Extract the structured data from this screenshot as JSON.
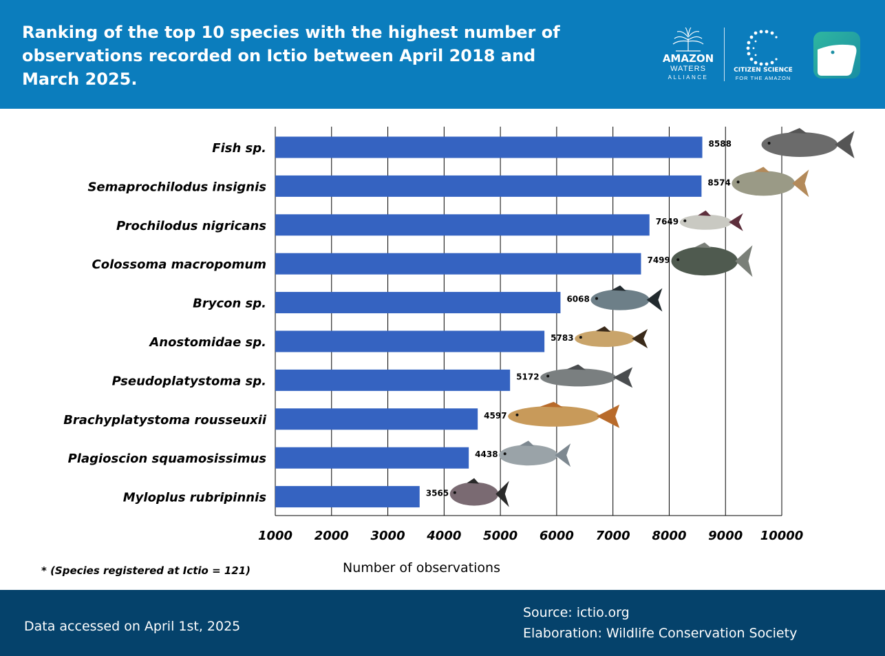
{
  "header": {
    "title": "Ranking of the top 10 species with the highest number of observations recorded on Ictio between April 2018 and March 2025.",
    "logos": {
      "amazon_waters": {
        "name": "AMAZON",
        "line2": "WATERS",
        "line3": "ALLIANCE"
      },
      "citizen_science": {
        "name": "CITIZEN SCIENCE",
        "sub": "FOR THE AMAZON"
      },
      "app_icon": "ictio-fish-app-icon"
    }
  },
  "colors": {
    "header_bg": "#0b7dbd",
    "footer_bg": "#05426b",
    "bar": "#3563c1",
    "grid": "#000000"
  },
  "chart_data": {
    "type": "bar",
    "orientation": "horizontal",
    "title": "Ranking of the top 10 species with the highest number of observations recorded on Ictio between April 2018 and March 2025.",
    "xlabel": "Number of observations",
    "ylabel": "",
    "xlim": [
      1000,
      10000
    ],
    "xticks": [
      1000,
      2000,
      3000,
      4000,
      5000,
      6000,
      7000,
      8000,
      9000,
      10000
    ],
    "grid": "vertical",
    "categories": [
      "Fish sp.",
      "Semaprochilodus insignis",
      "Prochilodus nigricans",
      "Colossoma macropomum",
      "Brycon sp.",
      "Anostomidae sp.",
      "Pseudoplatystoma sp.",
      "Brachyplatystoma rousseuxii",
      "Plagioscion squamosissimus",
      "Myloplus rubripinnis"
    ],
    "values": [
      8588,
      8574,
      7649,
      7499,
      6068,
      5783,
      5172,
      4597,
      4438,
      3565
    ],
    "note": "* (Species registered at Ictio = 121)"
  },
  "footer": {
    "accessed": "Data accessed on April 1st, 2025",
    "source": "Source: ictio.org",
    "elaboration": "Elaboration: Wildlife Conservation Society"
  }
}
